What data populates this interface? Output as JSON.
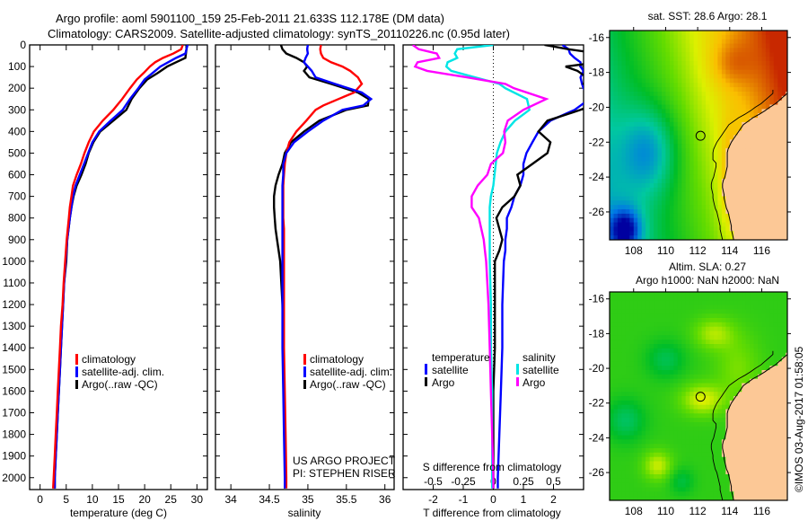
{
  "header": {
    "title_line1": "Argo profile: aoml 5901100_159 25-Feb-2011 21.633S 112.178E (DM data)",
    "title_line2": "Climatology: CARS2009. Satellite-adjusted climatology: synTS_20110226.nc (0.95d later)"
  },
  "colors": {
    "climatology": "#ff0000",
    "satellite_adj": "#0000ff",
    "argo": "#000000",
    "salinity_satellite": "#00e5e5",
    "salinity_argo": "#ff00ff",
    "land": "#fcc896"
  },
  "chart_data": [
    {
      "id": "temperature",
      "type": "line",
      "xlabel": "temperature (deg C)",
      "ylabel": "",
      "xlim": [
        -2,
        32
      ],
      "ylim": [
        2055,
        0
      ],
      "xticks": [
        0,
        5,
        10,
        15,
        20,
        25,
        30
      ],
      "yticks": [
        0,
        100,
        200,
        300,
        400,
        500,
        600,
        700,
        800,
        900,
        1000,
        1100,
        1200,
        1300,
        1400,
        1500,
        1600,
        1700,
        1800,
        1900,
        2000
      ],
      "legend": {
        "placement": "lower-middle",
        "entries": [
          "climatology",
          "satellite-adj. clim.",
          "Argo(..raw -QC)"
        ]
      },
      "depth": [
        0,
        20,
        40,
        60,
        80,
        100,
        130,
        160,
        200,
        250,
        300,
        350,
        400,
        450,
        500,
        550,
        600,
        650,
        700,
        750,
        800,
        900,
        1000,
        1100,
        1200,
        1300,
        1400,
        1500,
        1600,
        1700,
        1800,
        1900,
        2000,
        2050
      ],
      "series": [
        {
          "name": "climatology",
          "color": "#ff0000",
          "values": [
            27.3,
            27.0,
            25.5,
            23.5,
            22.0,
            21.0,
            19.8,
            18.5,
            17.2,
            15.7,
            14.0,
            12.0,
            10.3,
            9.3,
            8.5,
            7.8,
            7.0,
            6.3,
            6.0,
            5.7,
            5.5,
            5.1,
            4.8,
            4.5,
            4.3,
            4.0,
            3.8,
            3.6,
            3.4,
            3.2,
            3.0,
            2.8,
            2.6,
            2.5
          ]
        },
        {
          "name": "satellite-adj. clim.",
          "color": "#0000ff",
          "values": [
            28.2,
            28.0,
            27.8,
            26.0,
            24.5,
            23.0,
            21.5,
            20.0,
            18.8,
            17.2,
            15.8,
            13.5,
            11.3,
            10.0,
            9.2,
            8.4,
            7.6,
            6.8,
            6.3,
            6.0,
            5.7,
            5.2,
            4.9,
            4.6,
            4.4,
            4.2,
            4.0,
            3.8,
            3.6,
            3.4,
            3.2,
            3.0,
            2.8,
            2.8
          ]
        },
        {
          "name": "Argo(..raw -QC)",
          "color": "#000000",
          "values": [
            28.0,
            28.0,
            27.9,
            27.8,
            26.0,
            24.3,
            22.5,
            20.5,
            19.0,
            17.5,
            16.5,
            14.0,
            11.5,
            10.2,
            9.3,
            8.7,
            7.9,
            7.0,
            6.4,
            6.0,
            5.7,
            5.2,
            5.0,
            4.6,
            4.4,
            4.2,
            4.0,
            3.8,
            3.6,
            3.4,
            3.2,
            3.0,
            2.8,
            2.8
          ]
        }
      ]
    },
    {
      "id": "salinity",
      "type": "line",
      "xlabel": "salinity",
      "ylabel": "",
      "xlim": [
        33.8,
        36.12
      ],
      "ylim": [
        2055,
        0
      ],
      "xticks": [
        34,
        34.5,
        35,
        35.5,
        36
      ],
      "legend": {
        "placement": "lower-middle",
        "entries": [
          "climatology",
          "satellite-adj. clim.",
          "Argo(..raw -QC)"
        ]
      },
      "annotation": [
        "US ARGO PROJECT",
        "PI: STEPHEN RISER"
      ],
      "depth": [
        0,
        20,
        40,
        60,
        80,
        100,
        120,
        150,
        180,
        220,
        250,
        280,
        300,
        350,
        400,
        450,
        500,
        550,
        600,
        650,
        700,
        750,
        800,
        850,
        900,
        1000,
        1200,
        1400,
        1600,
        1800,
        2000,
        2050
      ],
      "series": [
        {
          "name": "climatology",
          "color": "#ff0000",
          "values": [
            35.17,
            35.16,
            35.17,
            35.2,
            35.3,
            35.45,
            35.55,
            35.65,
            35.7,
            35.6,
            35.4,
            35.2,
            35.1,
            34.98,
            34.85,
            34.76,
            34.72,
            34.7,
            34.69,
            34.68,
            34.68,
            34.68,
            34.68,
            34.69,
            34.69,
            34.69,
            34.69,
            34.69,
            34.7,
            34.71,
            34.72,
            34.72
          ]
        },
        {
          "name": "satellite-adj. clim.",
          "color": "#0000ff",
          "values": [
            35.0,
            34.99,
            35.0,
            34.97,
            34.95,
            35.0,
            35.05,
            35.1,
            35.35,
            35.7,
            35.82,
            35.72,
            35.45,
            35.2,
            35.0,
            34.82,
            34.72,
            34.68,
            34.68,
            34.67,
            34.67,
            34.67,
            34.67,
            34.67,
            34.67,
            34.67,
            34.67,
            34.67,
            34.68,
            34.69,
            34.7,
            34.7
          ]
        },
        {
          "name": "Argo(..raw -QC)",
          "color": "#000000",
          "values": [
            34.65,
            34.67,
            34.72,
            34.85,
            34.95,
            34.99,
            34.95,
            35.02,
            35.3,
            35.65,
            35.79,
            35.78,
            35.5,
            35.15,
            34.95,
            34.78,
            34.7,
            34.67,
            34.62,
            34.58,
            34.56,
            34.56,
            34.57,
            34.58,
            34.6,
            34.64,
            34.67,
            34.68,
            34.69,
            34.7,
            34.7,
            34.7
          ]
        }
      ]
    },
    {
      "id": "differences",
      "type": "line",
      "xlabel": "T difference from climatology",
      "xlabel_top": "S difference from climatology",
      "xlim": [
        -3,
        3
      ],
      "xlim_salinity": [
        -0.75,
        0.75
      ],
      "ylim": [
        2055,
        0
      ],
      "xticks": [
        -2,
        -1,
        0,
        1,
        2
      ],
      "xticks_salinity": [
        -0.5,
        -0.25,
        0,
        0.25,
        0.5
      ],
      "zero_line": "dotted",
      "legend": {
        "placement": "lower-middle",
        "temperature_header": "temperature",
        "salinity_header": "salinity",
        "entries": [
          {
            "group": "temperature",
            "label": "satellite",
            "color": "#0000ff"
          },
          {
            "group": "temperature",
            "label": "Argo",
            "color": "#000000"
          },
          {
            "group": "salinity",
            "label": "satellite",
            "color": "#00e5e5"
          },
          {
            "group": "salinity",
            "label": "Argo",
            "color": "#ff00ff"
          }
        ]
      },
      "depth": [
        0,
        20,
        40,
        60,
        80,
        100,
        120,
        150,
        180,
        200,
        250,
        300,
        350,
        400,
        450,
        500,
        550,
        600,
        650,
        700,
        750,
        800,
        850,
        900,
        950,
        1000,
        1200,
        1400,
        1600,
        1800,
        2000,
        2050
      ],
      "series": [
        {
          "name": "temperature satellite",
          "color": "#0000ff",
          "units": "T",
          "values": [
            2.3,
            2.5,
            2.55,
            2.7,
            2.9,
            2.9,
            3.0,
            2.9,
            2.95,
            3.0,
            3.2,
            2.7,
            1.9,
            1.5,
            1.3,
            1.1,
            1.0,
            1.0,
            0.9,
            0.7,
            0.6,
            0.45,
            0.45,
            0.4,
            0.4,
            0.35,
            0.3,
            0.3,
            0.25,
            0.2,
            0.15,
            0.15
          ]
        },
        {
          "name": "temperature Argo",
          "color": "#000000",
          "units": "T",
          "values": [
            1.7,
            2.5,
            3.5,
            3.6,
            3.5,
            2.4,
            2.8,
            3.1,
            3.0,
            3.4,
            3.8,
            2.9,
            1.8,
            1.5,
            1.9,
            1.8,
            1.3,
            0.8,
            0.9,
            0.7,
            0.3,
            0.1,
            0.2,
            0.3,
            0.2,
            0.05,
            0.05,
            0.05,
            0.0,
            0.0,
            0.0,
            0.0
          ]
        },
        {
          "name": "salinity satellite",
          "color": "#00e5e5",
          "units": "S",
          "values": [
            0.0,
            -0.3,
            -0.32,
            -0.3,
            -0.38,
            -0.39,
            -0.35,
            -0.15,
            0.05,
            0.1,
            0.28,
            0.3,
            0.18,
            0.1,
            0.06,
            0.03,
            0.02,
            0.01,
            0.0,
            -0.02,
            -0.03,
            -0.03,
            -0.03,
            -0.03,
            -0.03,
            -0.03,
            -0.02,
            -0.02,
            -0.01,
            -0.01,
            -0.01,
            -0.01
          ]
        },
        {
          "name": "salinity Argo",
          "color": "#ff00ff",
          "units": "S",
          "values": [
            -0.67,
            -0.62,
            -0.47,
            -0.45,
            -0.63,
            -0.65,
            -0.55,
            -0.22,
            0.1,
            0.17,
            0.44,
            0.25,
            0.12,
            0.09,
            0.1,
            0.08,
            -0.02,
            -0.05,
            -0.13,
            -0.18,
            -0.18,
            -0.12,
            -0.1,
            -0.08,
            -0.07,
            -0.06,
            -0.04,
            -0.03,
            -0.02,
            -0.01,
            0.0,
            0.0
          ]
        }
      ]
    },
    {
      "id": "sst_map",
      "type": "heatmap",
      "title": "sat. SST: 28.6 Argo: 28.1",
      "xlim": [
        106.5,
        117.6
      ],
      "ylim": [
        -27.6,
        -15.6
      ],
      "xticks": [
        108,
        110,
        112,
        114,
        116
      ],
      "yticks": [
        -16,
        -18,
        -20,
        -22,
        -24,
        -26
      ],
      "marker": {
        "lon": 112.178,
        "lat": -21.633
      }
    },
    {
      "id": "sla_map",
      "type": "heatmap",
      "title_line1": "Altim. SLA: 0.27",
      "title_line2": "Argo h1000: NaN h2000: NaN",
      "xlim": [
        106.5,
        117.6
      ],
      "ylim": [
        -27.6,
        -15.6
      ],
      "xticks": [
        108,
        110,
        112,
        114,
        116
      ],
      "yticks": [
        -16,
        -18,
        -20,
        -22,
        -24,
        -26
      ],
      "marker": {
        "lon": 112.178,
        "lat": -21.633
      }
    }
  ],
  "footer": {
    "credit": "©IMOS 03-Aug-2017 01:58:05"
  }
}
